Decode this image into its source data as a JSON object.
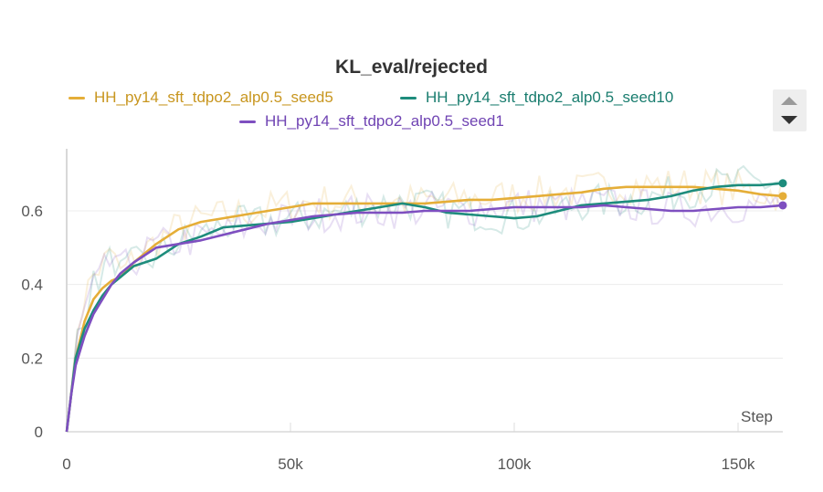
{
  "panel": {
    "title": "KL_eval/rejected"
  },
  "legend": {
    "items": [
      {
        "label": "HH_py14_sft_tdpo2_alp0.5_seed5",
        "color": "#e5ae38"
      },
      {
        "label": "HH_py14_sft_tdpo2_alp0.5_seed10",
        "color": "#1d8c7c"
      },
      {
        "label": "HH_py14_sft_tdpo2_alp0.5_seed1",
        "color": "#7e4fc0"
      }
    ],
    "scroll_up_icon": "triangle-up-icon",
    "scroll_down_icon": "triangle-down-icon"
  },
  "chart_data": {
    "type": "line",
    "title": "KL_eval/rejected",
    "xlabel": "Step",
    "ylabel": "",
    "xlim": [
      0,
      160000
    ],
    "ylim": [
      0,
      0.75
    ],
    "x_ticks": [
      0,
      50000,
      100000,
      150000
    ],
    "x_tick_labels": [
      "0",
      "50k",
      "100k",
      "150k"
    ],
    "y_ticks": [
      0,
      0.2,
      0.4,
      0.6
    ],
    "y_tick_labels": [
      "0",
      "0.2",
      "0.4",
      "0.6"
    ],
    "grid": true,
    "legend_position": "top",
    "series": [
      {
        "name": "HH_py14_sft_tdpo2_alp0.5_seed5",
        "color": "#e5ae38",
        "x": [
          0,
          1000,
          2000,
          4000,
          6000,
          8000,
          10000,
          12000,
          15000,
          20000,
          25000,
          30000,
          35000,
          40000,
          45000,
          50000,
          55000,
          60000,
          65000,
          70000,
          75000,
          80000,
          85000,
          90000,
          95000,
          100000,
          105000,
          110000,
          115000,
          120000,
          125000,
          130000,
          135000,
          140000,
          145000,
          150000,
          155000,
          160000
        ],
        "y": [
          0,
          0.1,
          0.2,
          0.3,
          0.36,
          0.39,
          0.41,
          0.42,
          0.46,
          0.51,
          0.55,
          0.57,
          0.58,
          0.59,
          0.6,
          0.61,
          0.62,
          0.62,
          0.62,
          0.62,
          0.62,
          0.62,
          0.625,
          0.63,
          0.63,
          0.635,
          0.64,
          0.645,
          0.65,
          0.66,
          0.665,
          0.665,
          0.665,
          0.665,
          0.66,
          0.655,
          0.645,
          0.64
        ]
      },
      {
        "name": "HH_py14_sft_tdpo2_alp0.5_seed10",
        "color": "#1d8c7c",
        "x": [
          0,
          1000,
          2000,
          4000,
          6000,
          8000,
          10000,
          12000,
          15000,
          20000,
          25000,
          30000,
          35000,
          40000,
          45000,
          50000,
          55000,
          60000,
          65000,
          70000,
          75000,
          80000,
          85000,
          90000,
          95000,
          100000,
          105000,
          110000,
          115000,
          120000,
          125000,
          130000,
          135000,
          140000,
          145000,
          150000,
          155000,
          160000
        ],
        "y": [
          0,
          0.1,
          0.2,
          0.28,
          0.33,
          0.37,
          0.4,
          0.42,
          0.45,
          0.47,
          0.51,
          0.53,
          0.555,
          0.56,
          0.565,
          0.57,
          0.58,
          0.59,
          0.6,
          0.61,
          0.62,
          0.61,
          0.595,
          0.59,
          0.585,
          0.58,
          0.585,
          0.6,
          0.615,
          0.62,
          0.625,
          0.63,
          0.64,
          0.655,
          0.665,
          0.67,
          0.67,
          0.675
        ]
      },
      {
        "name": "HH_py14_sft_tdpo2_alp0.5_seed1",
        "color": "#7e4fc0",
        "x": [
          0,
          1000,
          2000,
          4000,
          6000,
          8000,
          10000,
          12000,
          15000,
          20000,
          25000,
          30000,
          35000,
          40000,
          45000,
          50000,
          55000,
          60000,
          65000,
          70000,
          75000,
          80000,
          85000,
          90000,
          95000,
          100000,
          105000,
          110000,
          115000,
          120000,
          125000,
          130000,
          135000,
          140000,
          145000,
          150000,
          155000,
          160000
        ],
        "y": [
          0,
          0.1,
          0.18,
          0.26,
          0.32,
          0.36,
          0.4,
          0.43,
          0.46,
          0.5,
          0.51,
          0.52,
          0.535,
          0.55,
          0.565,
          0.575,
          0.585,
          0.59,
          0.595,
          0.595,
          0.595,
          0.6,
          0.6,
          0.6,
          0.605,
          0.61,
          0.61,
          0.61,
          0.61,
          0.615,
          0.61,
          0.605,
          0.6,
          0.6,
          0.605,
          0.61,
          0.61,
          0.615
        ]
      }
    ]
  }
}
